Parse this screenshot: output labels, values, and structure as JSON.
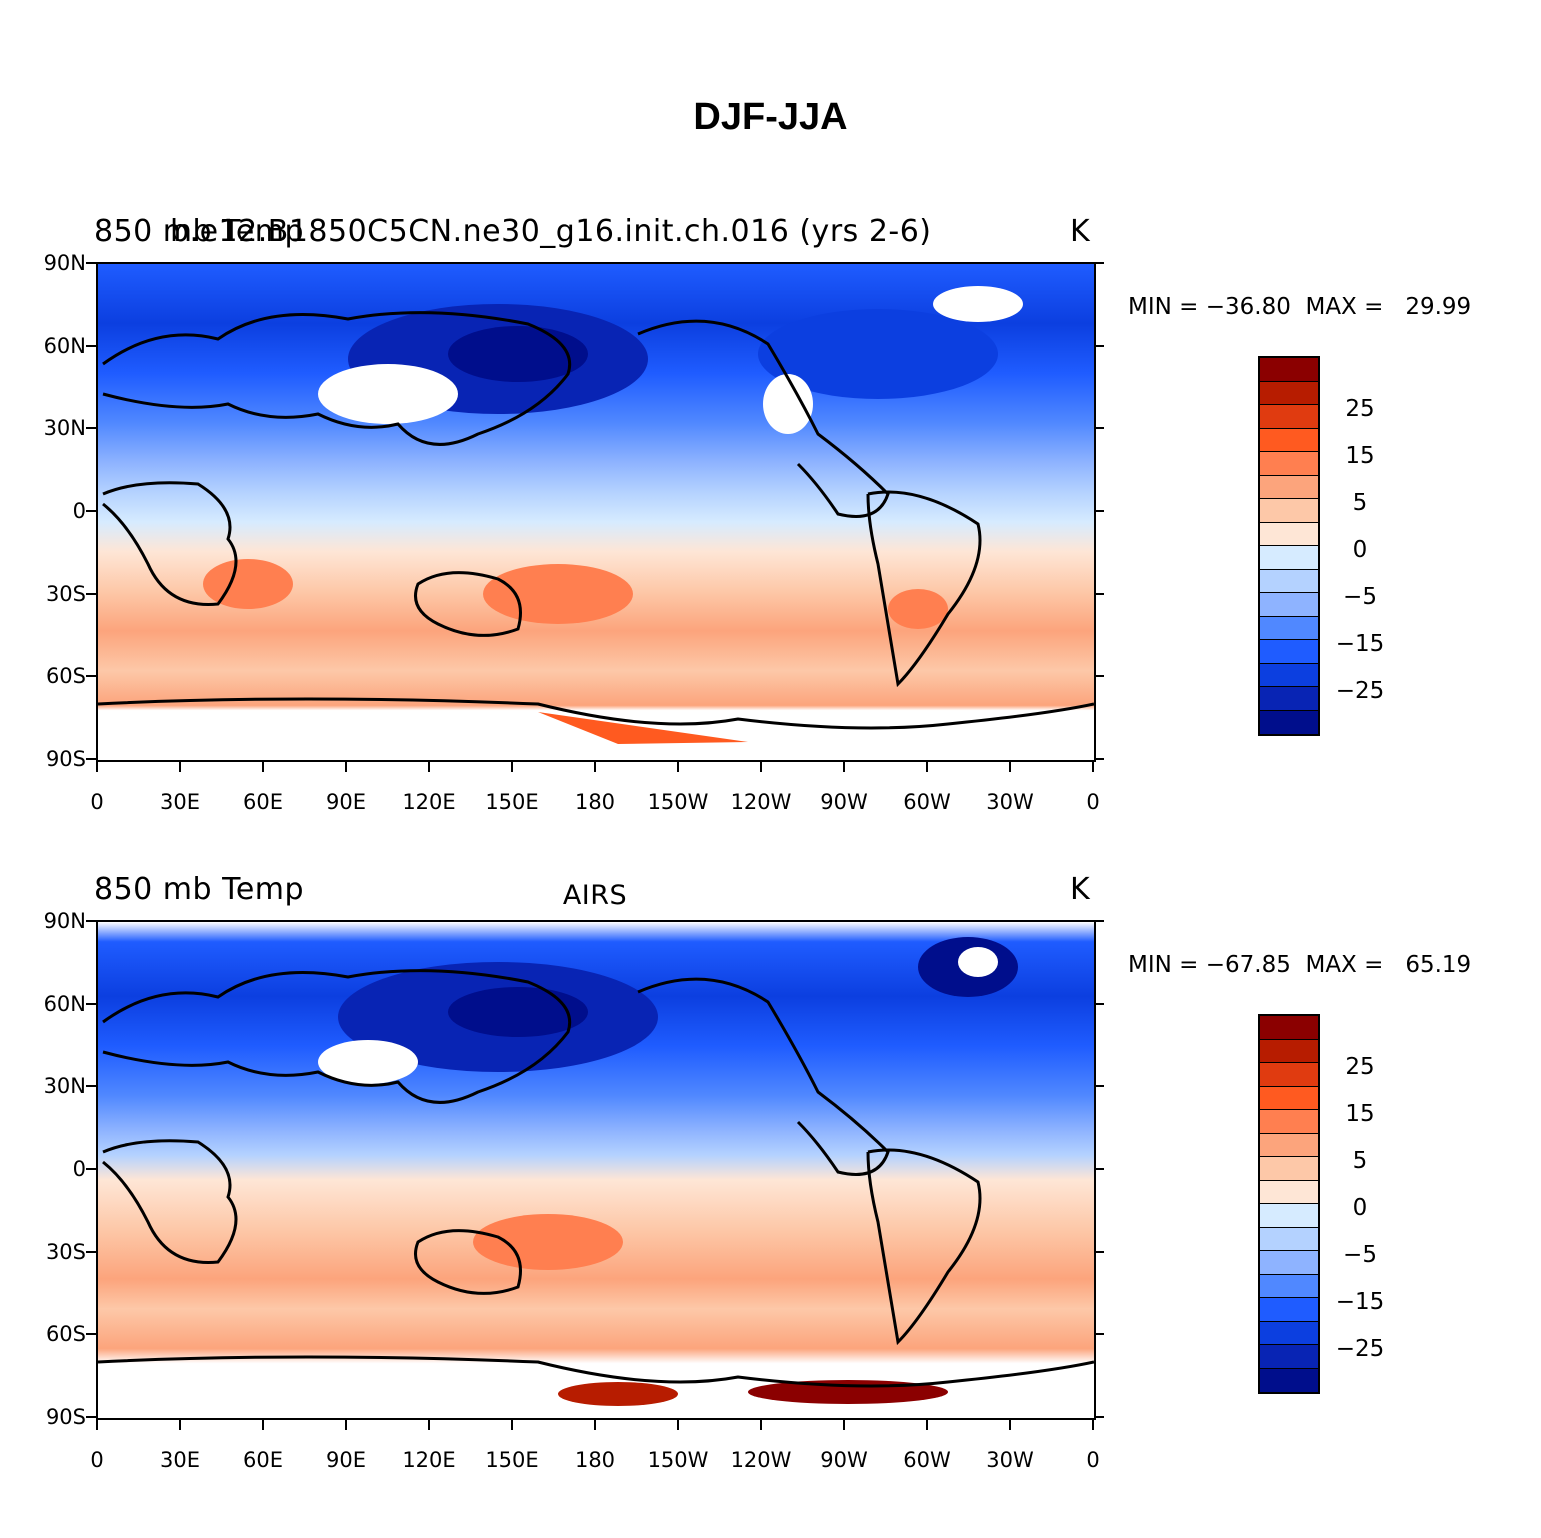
{
  "figure": {
    "title": "DJF-JJA"
  },
  "chart_data": [
    {
      "type": "heatmap",
      "title_left": "850 mb Temp",
      "title_center": "b.e12.B1850C5CN.ne30_g16.init.ch.016 (yrs 2-6)",
      "units": "K",
      "min_label": "MIN = −36.80",
      "max_label": "MAX =   29.99",
      "ylabels": [
        "90N",
        "60N",
        "30N",
        "0",
        "30S",
        "60S",
        "90S"
      ],
      "xlabels": [
        "0",
        "30E",
        "60E",
        "90E",
        "120E",
        "150E",
        "180",
        "150W",
        "120W",
        "90W",
        "60W",
        "30W",
        "0"
      ],
      "colorbar_labels": [
        "25",
        "15",
        "5",
        "0",
        "−5",
        "−15",
        "−25"
      ],
      "colorbar_colors": [
        "#8b0000",
        "#b71c00",
        "#e03b10",
        "#ff5a20",
        "#ff7f50",
        "#fca47c",
        "#fdc8a8",
        "#fee6d6",
        "#d6ebff",
        "#b4d2ff",
        "#8eb3ff",
        "#5088ff",
        "#1f5cff",
        "#0c3fe0",
        "#0824b4",
        "#000e8c"
      ],
      "description_values": {
        "antarctic_max": 29.99,
        "siberian_min": -36.8
      }
    },
    {
      "type": "heatmap",
      "title_left": "850 mb Temp",
      "title_center": "AIRS",
      "units": "K",
      "min_label": "MIN = −67.85",
      "max_label": "MAX =   65.19",
      "ylabels": [
        "90N",
        "60N",
        "30N",
        "0",
        "30S",
        "60S",
        "90S"
      ],
      "xlabels": [
        "0",
        "30E",
        "60E",
        "90E",
        "120E",
        "150E",
        "180",
        "150W",
        "120W",
        "90W",
        "60W",
        "30W",
        "0"
      ],
      "colorbar_labels": [
        "25",
        "15",
        "5",
        "0",
        "−5",
        "−15",
        "−25"
      ],
      "colorbar_colors": [
        "#8b0000",
        "#b71c00",
        "#e03b10",
        "#ff5a20",
        "#ff7f50",
        "#fca47c",
        "#fdc8a8",
        "#fee6d6",
        "#d6ebff",
        "#b4d2ff",
        "#8eb3ff",
        "#5088ff",
        "#1f5cff",
        "#0c3fe0",
        "#0824b4",
        "#000e8c"
      ],
      "description_values": {
        "antarctic_max": 65.19,
        "siberian_min": -67.85
      }
    }
  ]
}
